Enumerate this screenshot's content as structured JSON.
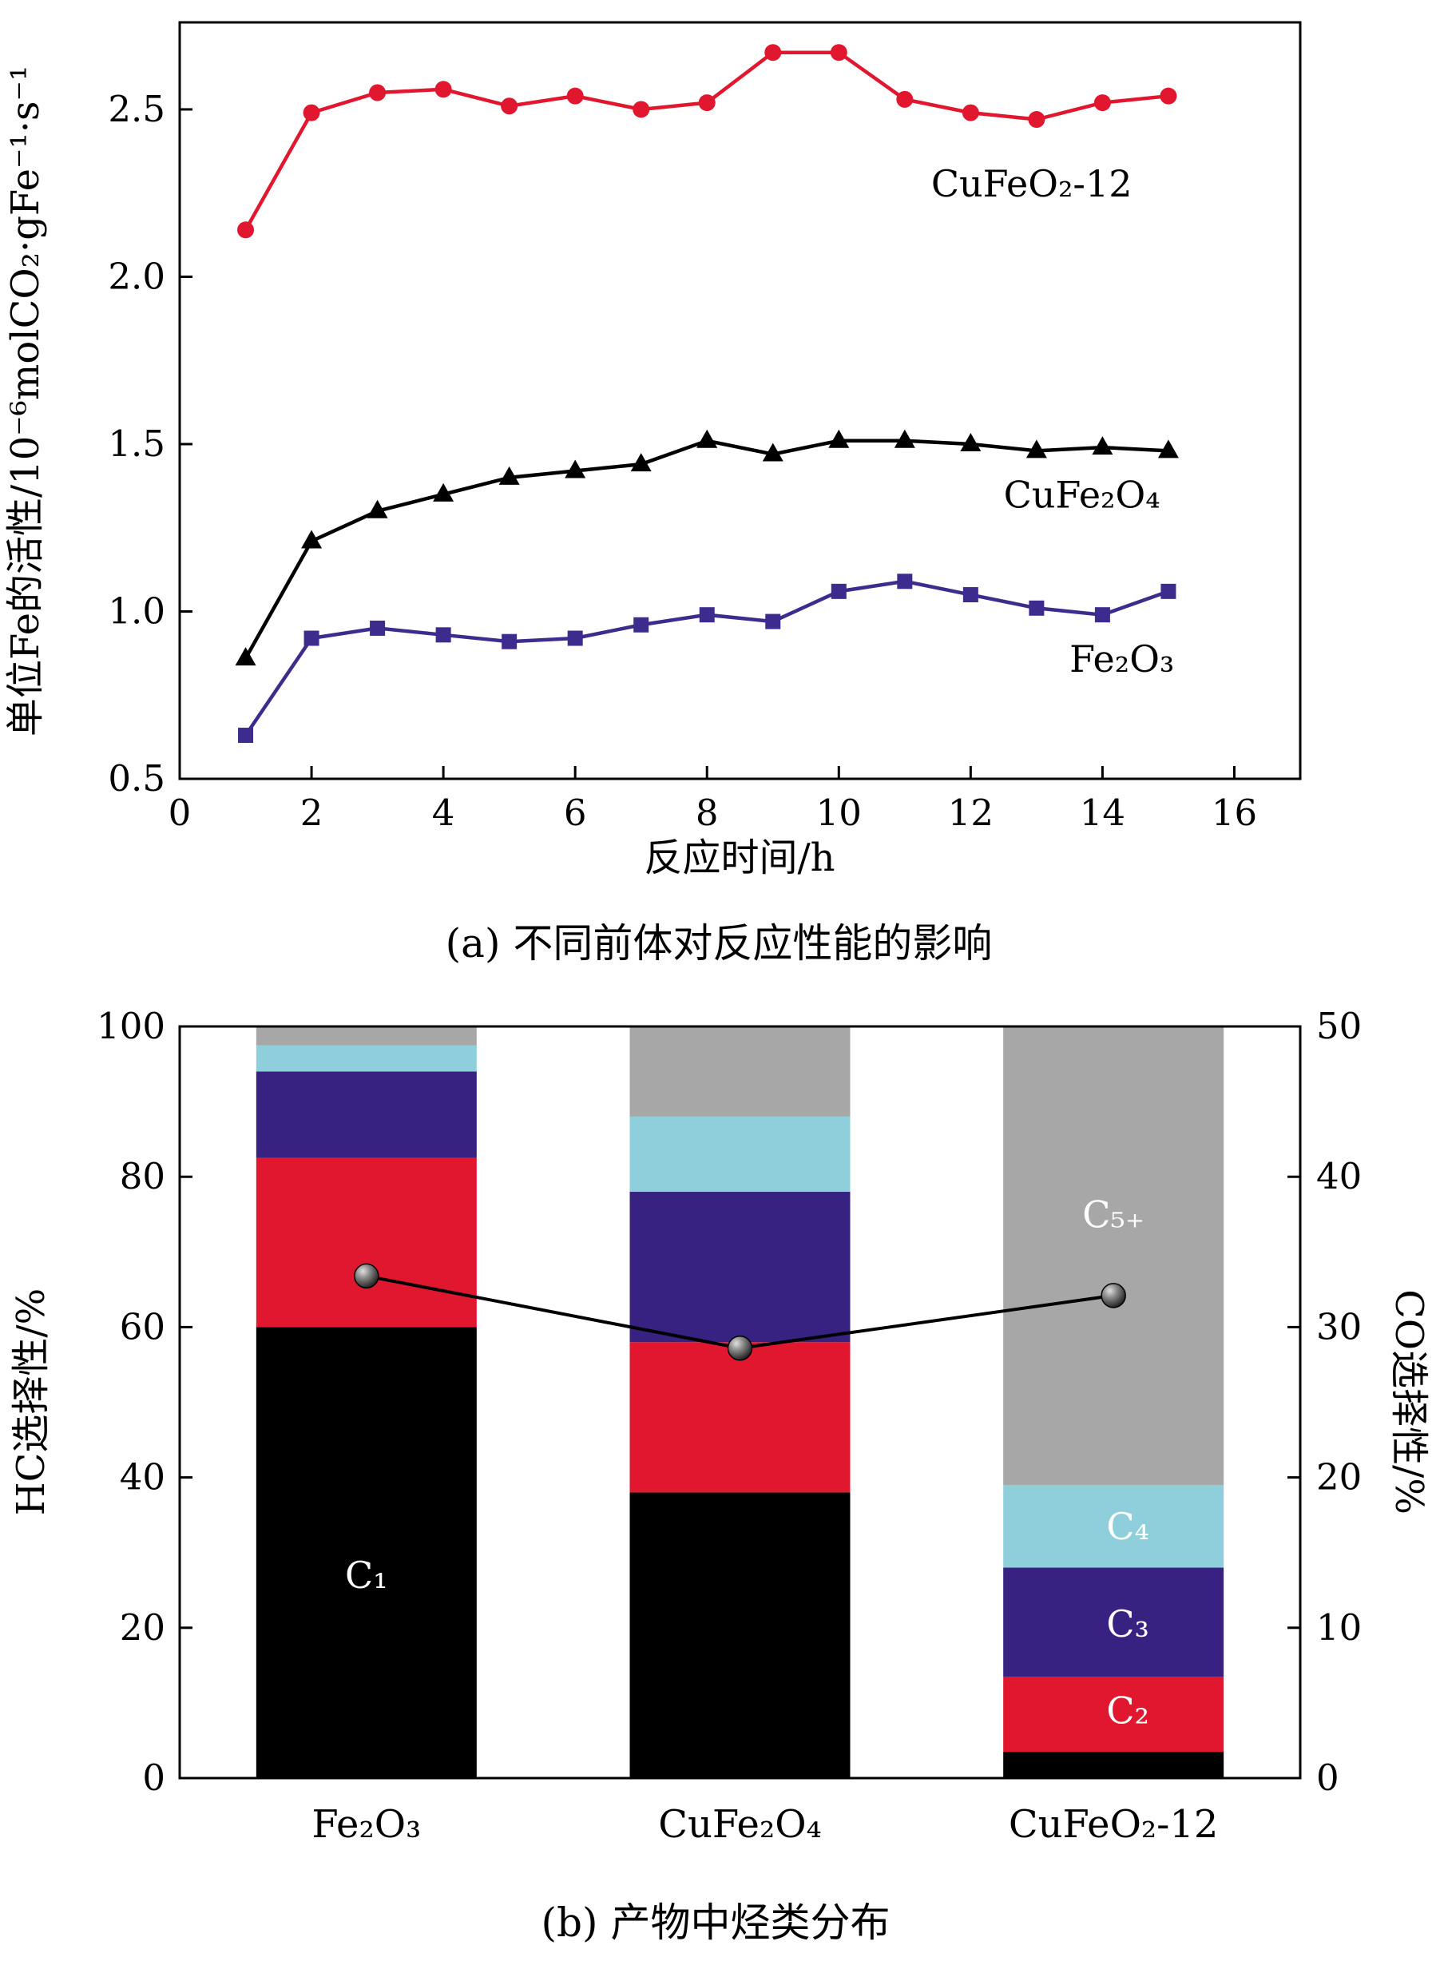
{
  "captions": {
    "a": "(a) 不同前体对反应性能的影响",
    "b": "(b) 产物中烃类分布"
  },
  "colors": {
    "red": "#e1162f",
    "black": "#000000",
    "purple": "#3e2b8e",
    "bar_purple": "#372181",
    "cyan": "#8ecfdb",
    "gray": "#a7a7a7"
  },
  "chart_data": [
    {
      "type": "line",
      "title": "",
      "xlabel": "反应时间/h",
      "ylabel": "单位Fe的活性/10⁻⁶molCO₂·gFe⁻¹·s⁻¹",
      "xlim": [
        0,
        17
      ],
      "ylim": [
        0.5,
        2.76
      ],
      "xticks": [
        0,
        2,
        4,
        6,
        8,
        10,
        12,
        14,
        16
      ],
      "yticks": [
        0.5,
        1.0,
        1.5,
        2.0,
        2.5
      ],
      "ytick_labels": [
        "0.5",
        "1.0",
        "1.5",
        "2.0",
        "2.5"
      ],
      "x": [
        1,
        2,
        3,
        4,
        5,
        6,
        7,
        8,
        9,
        10,
        11,
        12,
        13,
        14,
        15
      ],
      "series": [
        {
          "name": "CuFeO₂-12",
          "marker": "circle",
          "color": "#e1162f",
          "values": [
            2.14,
            2.49,
            2.55,
            2.56,
            2.51,
            2.54,
            2.5,
            2.52,
            2.67,
            2.67,
            2.53,
            2.49,
            2.47,
            2.52,
            2.54
          ],
          "label": {
            "text": "CuFeO₂-12",
            "x": 11.4,
            "y": 2.24
          }
        },
        {
          "name": "CuFe₂O₄",
          "marker": "triangle",
          "color": "#000000",
          "values": [
            0.86,
            1.21,
            1.3,
            1.35,
            1.4,
            1.42,
            1.44,
            1.51,
            1.47,
            1.51,
            1.51,
            1.5,
            1.48,
            1.49,
            1.48
          ],
          "label": {
            "text": "CuFe₂O₄",
            "x": 12.5,
            "y": 1.31
          }
        },
        {
          "name": "Fe₂O₃",
          "marker": "square",
          "color": "#3e2b8e",
          "values": [
            0.63,
            0.92,
            0.95,
            0.93,
            0.91,
            0.92,
            0.96,
            0.99,
            0.97,
            1.06,
            1.09,
            1.05,
            1.01,
            0.99,
            1.06
          ],
          "label": {
            "text": "Fe₂O₃",
            "x": 13.5,
            "y": 0.82
          }
        }
      ]
    },
    {
      "type": "stacked-bar-line",
      "ylabel_left": "HC选择性/%",
      "ylabel_right": "CO选择性/%",
      "ylim_left": [
        0,
        100
      ],
      "ylim_right": [
        0,
        50
      ],
      "yticks_left": [
        0,
        20,
        40,
        60,
        80,
        100
      ],
      "yticks_right": [
        0,
        10,
        20,
        30,
        40,
        50
      ],
      "categories": [
        "Fe₂O₃",
        "CuFe₂O₄",
        "CuFeO₂-12"
      ],
      "stack_series": [
        {
          "name": "C₁",
          "color": "#000000",
          "values": [
            60,
            38,
            3.5
          ]
        },
        {
          "name": "C₂",
          "color": "#e1162f",
          "values": [
            22.5,
            20,
            10
          ]
        },
        {
          "name": "C₃",
          "color": "#372181",
          "values": [
            11.5,
            20,
            14.5
          ]
        },
        {
          "name": "C₄",
          "color": "#8ecfdb",
          "values": [
            3.5,
            10,
            11
          ]
        },
        {
          "name": "C₅₊",
          "color": "#a7a7a7",
          "values": [
            2.5,
            12,
            61
          ]
        }
      ],
      "line_series": {
        "name": "CO选择性",
        "axis": "right",
        "color": "#000000",
        "values": [
          33.4,
          28.6,
          32.1
        ]
      },
      "annotations": [
        {
          "text": "C₁",
          "category": 0,
          "y": 27,
          "dx": 0
        },
        {
          "text": "C₅₊",
          "category": 2,
          "y": 75,
          "dx": 0
        },
        {
          "text": "C₄",
          "category": 2,
          "y": 33.5,
          "dx": 18
        },
        {
          "text": "C₃",
          "category": 2,
          "y": 20.5,
          "dx": 18
        },
        {
          "text": "C₂",
          "category": 2,
          "y": 9,
          "dx": 18
        }
      ]
    }
  ]
}
